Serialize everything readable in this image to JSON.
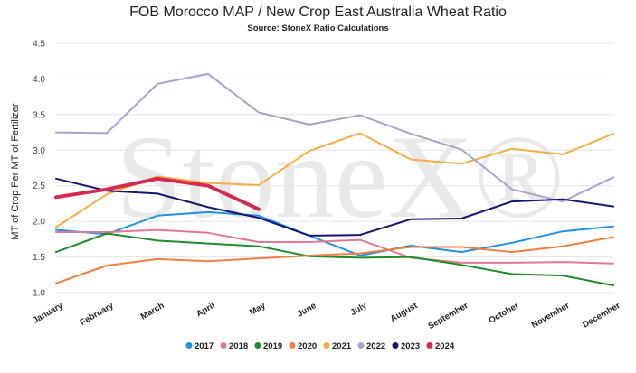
{
  "chart_data": {
    "type": "line",
    "title": "FOB Morocco MAP / New Crop East Australia Wheat Ratio",
    "subtitle": "Source: StoneX Ratio Calculations",
    "watermark": "StoneX®",
    "xlabel": "",
    "ylabel": "MT of Crop Per MT of Fertilizer",
    "ylim": [
      1.0,
      4.5
    ],
    "yticks": [
      "1.0",
      "1.5",
      "2.0",
      "2.5",
      "3.0",
      "3.5",
      "4.0",
      "4.5"
    ],
    "grid": true,
    "legend_position": "bottom",
    "categories": [
      "January",
      "February",
      "March",
      "April",
      "May",
      "June",
      "July",
      "August",
      "September",
      "October",
      "November",
      "December"
    ],
    "series": [
      {
        "name": "2017",
        "color": "#1e90e6",
        "values": [
          1.88,
          1.82,
          2.08,
          2.13,
          2.08,
          1.8,
          1.52,
          1.66,
          1.57,
          1.7,
          1.86,
          1.93
        ]
      },
      {
        "name": "2018",
        "color": "#e07a93",
        "values": [
          1.85,
          1.85,
          1.88,
          1.84,
          1.71,
          1.71,
          1.74,
          1.49,
          1.42,
          1.42,
          1.43,
          1.41
        ]
      },
      {
        "name": "2019",
        "color": "#1e8c28",
        "values": [
          1.57,
          1.83,
          1.73,
          1.69,
          1.65,
          1.51,
          1.49,
          1.5,
          1.39,
          1.26,
          1.24,
          1.1
        ]
      },
      {
        "name": "2020",
        "color": "#f07e3e",
        "values": [
          1.13,
          1.38,
          1.47,
          1.44,
          1.48,
          1.52,
          1.55,
          1.64,
          1.64,
          1.57,
          1.65,
          1.78
        ]
      },
      {
        "name": "2021",
        "color": "#f5ad44",
        "values": [
          1.92,
          2.38,
          2.63,
          2.54,
          2.51,
          2.99,
          3.24,
          2.87,
          2.81,
          3.02,
          2.94,
          3.23
        ]
      },
      {
        "name": "2022",
        "color": "#a3a5cb",
        "values": [
          3.25,
          3.24,
          3.93,
          4.07,
          3.53,
          3.36,
          3.49,
          3.23,
          3.01,
          2.45,
          2.28,
          2.62
        ]
      },
      {
        "name": "2023",
        "color": "#16166e",
        "values": [
          2.6,
          2.43,
          2.39,
          2.2,
          2.05,
          1.8,
          1.81,
          2.03,
          2.04,
          2.28,
          2.31,
          2.21
        ]
      },
      {
        "name": "2024",
        "color": "#d42a52",
        "values": [
          2.34,
          2.45,
          2.6,
          2.5,
          2.17,
          null,
          null,
          null,
          null,
          null,
          null,
          null
        ]
      }
    ]
  }
}
